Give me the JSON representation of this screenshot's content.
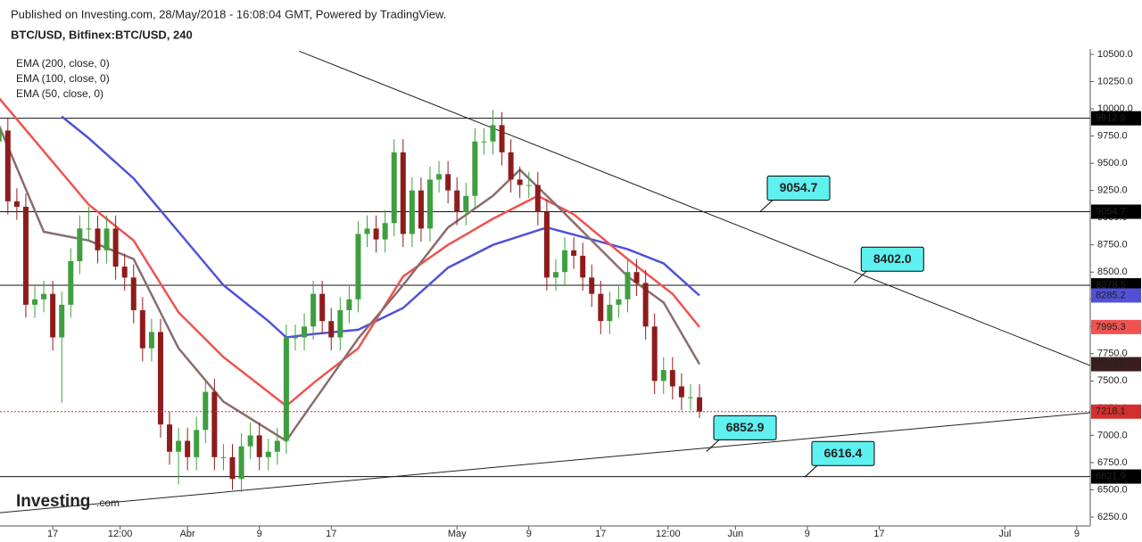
{
  "chart_data": {
    "type": "candlestick",
    "subtitle": "Published on Investing.com, 28/May/2018 - 16:08:04 GMT, Powered by TradingView.",
    "title": "BTC/USD, Bitfinex:BTC/USD, 240",
    "logo": {
      "brand": "Investing",
      "suffix": ".com"
    },
    "up_color": "#3f9e3f",
    "down_color": "#8e1c1c",
    "x": [
      "2018-03-11",
      "2018-03-12",
      "2018-03-13",
      "2018-03-14",
      "2018-03-15",
      "2018-03-16",
      "2018-03-17",
      "2018-03-18",
      "2018-03-19",
      "2018-03-20",
      "2018-03-21",
      "2018-03-22",
      "2018-03-23",
      "2018-03-24",
      "2018-03-25",
      "2018-03-26",
      "2018-03-27",
      "2018-03-28",
      "2018-03-29",
      "2018-03-30",
      "2018-03-31",
      "2018-04-01",
      "2018-04-02",
      "2018-04-03",
      "2018-04-04",
      "2018-04-05",
      "2018-04-06",
      "2018-04-07",
      "2018-04-08",
      "2018-04-09",
      "2018-04-10",
      "2018-04-11",
      "2018-04-12",
      "2018-04-13",
      "2018-04-14",
      "2018-04-15",
      "2018-04-16",
      "2018-04-17",
      "2018-04-18",
      "2018-04-19",
      "2018-04-20",
      "2018-04-21",
      "2018-04-22",
      "2018-04-23",
      "2018-04-24",
      "2018-04-25",
      "2018-04-26",
      "2018-04-27",
      "2018-04-28",
      "2018-04-29",
      "2018-04-30",
      "2018-05-01",
      "2018-05-02",
      "2018-05-03",
      "2018-05-04",
      "2018-05-05",
      "2018-05-06",
      "2018-05-07",
      "2018-05-08",
      "2018-05-09",
      "2018-05-10",
      "2018-05-11",
      "2018-05-12",
      "2018-05-13",
      "2018-05-14",
      "2018-05-15",
      "2018-05-16",
      "2018-05-17",
      "2018-05-18",
      "2018-05-19",
      "2018-05-20",
      "2018-05-21",
      "2018-05-22",
      "2018-05-23",
      "2018-05-24",
      "2018-05-25",
      "2018-05-26",
      "2018-05-27",
      "2018-05-28"
    ],
    "open": [
      9700,
      9800,
      9150,
      9100,
      8200,
      8250,
      8300,
      7900,
      8200,
      8600,
      8900,
      8900,
      8700,
      8900,
      8550,
      8450,
      8150,
      7800,
      7950,
      7100,
      6850,
      6950,
      6800,
      7050,
      7400,
      6800,
      6800,
      6600,
      6900,
      7000,
      6800,
      6850,
      6950,
      7900,
      7900,
      8000,
      8300,
      8050,
      7900,
      8150,
      8250,
      8850,
      8900,
      8800,
      8950,
      9600,
      8850,
      9250,
      8900,
      9350,
      9400,
      9250,
      9050,
      9200,
      9700,
      9700,
      9850,
      9600,
      9350,
      9300,
      9300,
      9050,
      8450,
      8500,
      8700,
      8650,
      8450,
      8300,
      8050,
      8200,
      8250,
      8500,
      8400,
      8000,
      7500,
      7600,
      7450,
      7350,
      7350
    ],
    "high": [
      9920,
      9920,
      9270,
      9220,
      8370,
      8420,
      8420,
      8320,
      8720,
      9020,
      9100,
      9020,
      9020,
      9020,
      8670,
      8570,
      8270,
      8070,
      8070,
      7220,
      7070,
      7070,
      7170,
      7520,
      7520,
      6920,
      6920,
      7020,
      7120,
      7120,
      6970,
      7070,
      8020,
      8020,
      8120,
      8420,
      8420,
      8170,
      8270,
      8370,
      8970,
      9020,
      9020,
      9070,
      9720,
      9720,
      9370,
      9370,
      9470,
      9520,
      9520,
      9370,
      9320,
      9820,
      9820,
      9990,
      9970,
      9720,
      9470,
      9420,
      9420,
      9170,
      8620,
      8820,
      8820,
      8770,
      8570,
      8420,
      8320,
      8370,
      8620,
      8620,
      8520,
      8120,
      7720,
      7720,
      7570,
      7470,
      7470
    ],
    "low": [
      9580,
      9030,
      8980,
      8080,
      8080,
      8130,
      7780,
      7300,
      8080,
      8480,
      8780,
      8580,
      8580,
      8430,
      8330,
      8030,
      7680,
      7680,
      6980,
      6730,
      6550,
      6680,
      6680,
      6930,
      6680,
      6680,
      6500,
      6480,
      6780,
      6680,
      6680,
      6730,
      6830,
      7780,
      7780,
      7880,
      7930,
      7780,
      7780,
      8030,
      8130,
      8730,
      8680,
      8680,
      8830,
      8730,
      8730,
      8780,
      8780,
      9230,
      9130,
      8930,
      8930,
      9080,
      9580,
      9580,
      9480,
      9230,
      9180,
      9180,
      8930,
      8330,
      8330,
      8380,
      8530,
      8330,
      8180,
      7930,
      7930,
      8080,
      8130,
      8280,
      7880,
      7380,
      7380,
      7330,
      7230,
      7230,
      7160
    ],
    "close": [
      9800,
      9150,
      9100,
      8200,
      8250,
      8300,
      7900,
      8200,
      8600,
      8900,
      8900,
      8700,
      8900,
      8550,
      8450,
      8150,
      7800,
      7950,
      7100,
      6850,
      6950,
      6800,
      7050,
      7400,
      6800,
      6800,
      6600,
      6900,
      7000,
      6800,
      6850,
      6950,
      7900,
      7900,
      8000,
      8300,
      8050,
      7900,
      8150,
      8250,
      8850,
      8900,
      8800,
      8950,
      9600,
      8850,
      9250,
      8900,
      9350,
      9400,
      9250,
      9050,
      9200,
      9700,
      9700,
      9850,
      9600,
      9350,
      9300,
      9300,
      9050,
      8450,
      8500,
      8700,
      8650,
      8450,
      8300,
      8050,
      8200,
      8250,
      8500,
      8400,
      8000,
      7500,
      7600,
      7450,
      7350,
      7350,
      7218.1
    ],
    "close_color": "#d32f2f",
    "series": [
      {
        "name": "EMA (200, close, 0)",
        "color": "#5151d8",
        "x": [
          "2018-03-18",
          "2018-03-21",
          "2018-03-26",
          "2018-03-31",
          "2018-04-05",
          "2018-04-10",
          "2018-04-12",
          "2018-04-15",
          "2018-04-20",
          "2018-04-25",
          "2018-04-30",
          "2018-05-05",
          "2018-05-11",
          "2018-05-16",
          "2018-05-20",
          "2018-05-24",
          "2018-05-28"
        ],
        "values": [
          9930,
          9730,
          9360,
          8870,
          8380,
          8050,
          7900,
          7930,
          7970,
          8170,
          8540,
          8750,
          8910,
          8800,
          8710,
          8580,
          8285.2
        ]
      },
      {
        "name": "EMA (100, close, 0)",
        "color": "#ef5350",
        "x": [
          "2018-03-11",
          "2018-03-16",
          "2018-03-21",
          "2018-03-26",
          "2018-03-31",
          "2018-04-05",
          "2018-04-12",
          "2018-04-15",
          "2018-04-20",
          "2018-04-25",
          "2018-04-30",
          "2018-05-05",
          "2018-05-10",
          "2018-05-14",
          "2018-05-20",
          "2018-05-25",
          "2018-05-28"
        ],
        "values": [
          10100,
          9610,
          9120,
          8790,
          8130,
          7720,
          7270,
          7480,
          7800,
          8460,
          8750,
          8990,
          9200,
          9030,
          8620,
          8300,
          7995.3
        ]
      },
      {
        "name": "EMA (50, close, 0)",
        "color": "#8a6d6d",
        "x": [
          "2018-03-11",
          "2018-03-16",
          "2018-03-21",
          "2018-03-26",
          "2018-03-31",
          "2018-04-05",
          "2018-04-12",
          "2018-04-13",
          "2018-04-20",
          "2018-04-25",
          "2018-04-30",
          "2018-05-05",
          "2018-05-08",
          "2018-05-12",
          "2018-05-16",
          "2018-05-20",
          "2018-05-24",
          "2018-05-28"
        ],
        "values": [
          9850,
          8870,
          8790,
          8620,
          7800,
          7310,
          6950,
          7070,
          7890,
          8380,
          8910,
          9200,
          9440,
          9120,
          8790,
          8460,
          8220,
          7654
        ],
        "value_labels": [
          null,
          null,
          null,
          null,
          null,
          null,
          null,
          null,
          null,
          null,
          null,
          null,
          null,
          null,
          null,
          null,
          null,
          "7654.0"
        ],
        "label_color": "#3a1e1e"
      }
    ],
    "levels": [
      9912.9,
      9054.7,
      8378.5,
      6621.9
    ],
    "trendlines": [
      {
        "x": [
          "2018-04-13T10:00",
          "2018-07-10T12:00"
        ],
        "values": [
          10530,
          7642
        ]
      },
      {
        "x": [
          "2018-03-11T03:00",
          "2018-07-10T12:00"
        ],
        "values": [
          6290,
          7208
        ]
      }
    ],
    "annotations": [
      {
        "x": "2018-06-03T18:00",
        "value": 9054.7
      },
      {
        "x": "2018-06-14T05:00",
        "value": 8402,
        "label": "8402.0"
      },
      {
        "x": "2018-05-28T19:00",
        "value": 6852.9
      },
      {
        "x": "2018-06-08T17:00",
        "value": 6616.4
      }
    ],
    "annotation_color": "#5ff0f0",
    "xlim": [
      "2018-03-11T03:00",
      "2018-07-10T12:00"
    ],
    "ylim": [
      6168,
      10549
    ],
    "xticks": [
      {
        "value": "2018-03-17",
        "label": "17"
      },
      {
        "value": "2018-03-24T12:00",
        "label": "12:00"
      },
      {
        "value": "2018-04-01",
        "label": "Abr"
      },
      {
        "value": "2018-04-09",
        "label": "9"
      },
      {
        "value": "2018-04-17",
        "label": "17"
      },
      {
        "value": "2018-05-01",
        "label": "May"
      },
      {
        "value": "2018-05-09",
        "label": "9"
      },
      {
        "value": "2018-05-17",
        "label": "17"
      },
      {
        "value": "2018-05-24T12:00",
        "label": "12:00"
      },
      {
        "value": "2018-06-01",
        "label": "Jun"
      },
      {
        "value": "2018-06-09",
        "label": "9"
      },
      {
        "value": "2018-06-17",
        "label": "17"
      },
      {
        "value": "2018-07-01",
        "label": "Jul"
      },
      {
        "value": "2018-07-09",
        "label": "9"
      }
    ],
    "yticks": [
      {
        "value": 6250,
        "label": "6250.0"
      },
      {
        "value": 6500,
        "label": "6500.0"
      },
      {
        "value": 6750,
        "label": "6750.0"
      },
      {
        "value": 7000,
        "label": "7000.0"
      },
      {
        "value": 7250,
        "label": "7250.0"
      },
      {
        "value": 7500,
        "label": "7500.0"
      },
      {
        "value": 7750,
        "label": "7750.0"
      },
      {
        "value": 8000,
        "label": "8000.0"
      },
      {
        "value": 8250,
        "label": "8250.0"
      },
      {
        "value": 8500,
        "label": "8500.0"
      },
      {
        "value": 8750,
        "label": "8750.0"
      },
      {
        "value": 9000,
        "label": "9000.0"
      },
      {
        "value": 9250,
        "label": "9250.0"
      },
      {
        "value": 9500,
        "label": "9500.0"
      },
      {
        "value": 9750,
        "label": "9750.0"
      },
      {
        "value": 10000,
        "label": "10000.0"
      },
      {
        "value": 10250,
        "label": "10250.0"
      },
      {
        "value": 10500,
        "label": "10500.0"
      }
    ]
  }
}
